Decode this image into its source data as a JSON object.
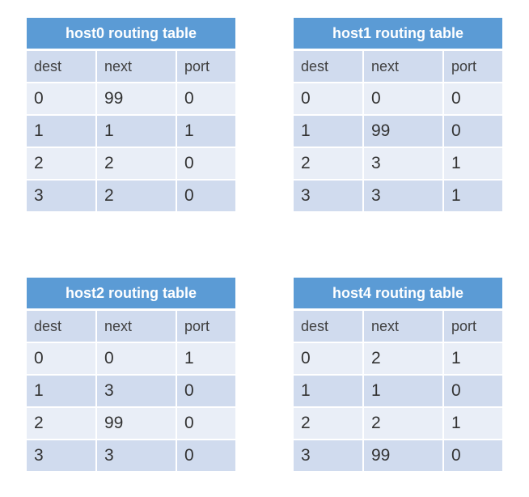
{
  "columns": [
    "dest",
    "next",
    "port"
  ],
  "tables": {
    "host0": {
      "title": "host0 routing table",
      "rows": [
        [
          "0",
          "99",
          "0"
        ],
        [
          "1",
          "1",
          "1"
        ],
        [
          "2",
          "2",
          "0"
        ],
        [
          "3",
          "2",
          "0"
        ]
      ]
    },
    "host1": {
      "title": "host1 routing table",
      "rows": [
        [
          "0",
          "0",
          "0"
        ],
        [
          "1",
          "99",
          "0"
        ],
        [
          "2",
          "3",
          "1"
        ],
        [
          "3",
          "3",
          "1"
        ]
      ]
    },
    "host2": {
      "title": "host2 routing table",
      "rows": [
        [
          "0",
          "0",
          "1"
        ],
        [
          "1",
          "3",
          "0"
        ],
        [
          "2",
          "99",
          "0"
        ],
        [
          "3",
          "3",
          "0"
        ]
      ]
    },
    "host4": {
      "title": "host4 routing table",
      "rows": [
        [
          "0",
          "2",
          "1"
        ],
        [
          "1",
          "1",
          "0"
        ],
        [
          "2",
          "2",
          "1"
        ],
        [
          "3",
          "99",
          "0"
        ]
      ]
    }
  },
  "colors": {
    "header_fill": "#5b9bd5",
    "row_dark": "#d0dbee",
    "row_light": "#e9eef7"
  }
}
